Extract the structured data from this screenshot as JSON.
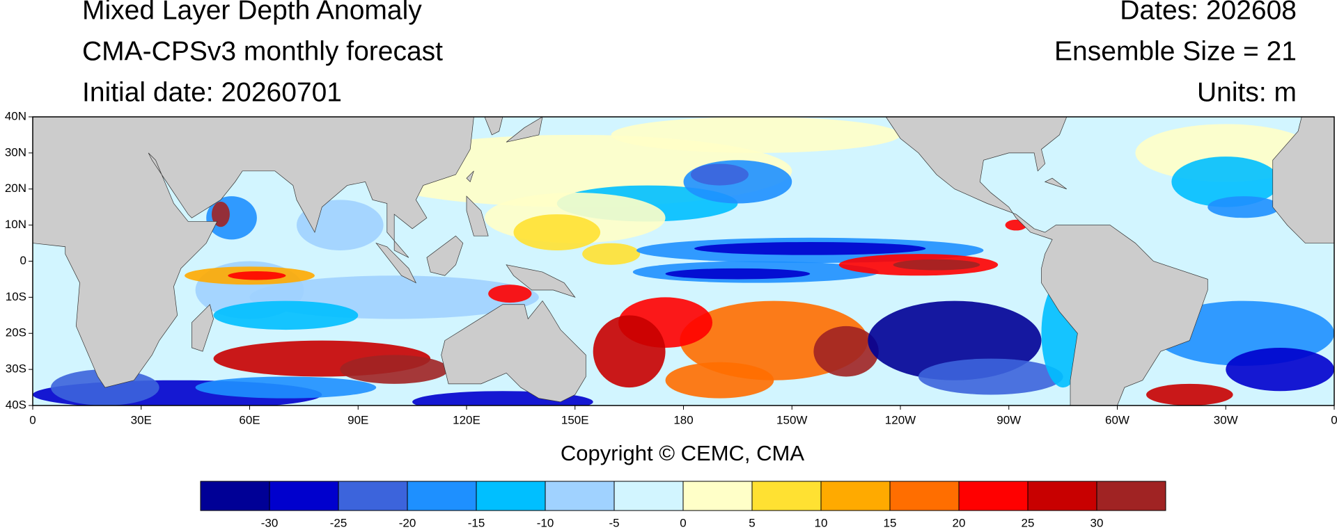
{
  "header": {
    "title": "Mixed Layer Depth Anomaly",
    "subtitle": "CMA-CPSv3 monthly forecast",
    "initial_date": "Initial date: 20260701",
    "dates": "Dates: 202608",
    "ensemble": "Ensemble Size = 21",
    "units": "Units: m"
  },
  "map": {
    "lat_ticks": [
      {
        "value": 40,
        "label": "40N"
      },
      {
        "value": 30,
        "label": "30N"
      },
      {
        "value": 20,
        "label": "20N"
      },
      {
        "value": 10,
        "label": "10N"
      },
      {
        "value": 0,
        "label": "0"
      },
      {
        "value": -10,
        "label": "10S"
      },
      {
        "value": -20,
        "label": "20S"
      },
      {
        "value": -30,
        "label": "30S"
      },
      {
        "value": -40,
        "label": "40S"
      }
    ],
    "lon_ticks": [
      {
        "value": 0,
        "label": "0"
      },
      {
        "value": 30,
        "label": "30E"
      },
      {
        "value": 60,
        "label": "60E"
      },
      {
        "value": 90,
        "label": "90E"
      },
      {
        "value": 120,
        "label": "120E"
      },
      {
        "value": 150,
        "label": "150E"
      },
      {
        "value": 180,
        "label": "180"
      },
      {
        "value": 210,
        "label": "150W"
      },
      {
        "value": 240,
        "label": "120W"
      },
      {
        "value": 270,
        "label": "90W"
      },
      {
        "value": 300,
        "label": "60W"
      },
      {
        "value": 330,
        "label": "30W"
      },
      {
        "value": 360,
        "label": "0"
      }
    ]
  },
  "copyright": "Copyright © CEMC, CMA",
  "colorbar": {
    "levels": [
      -30,
      -25,
      -20,
      -15,
      -10,
      -5,
      0,
      5,
      10,
      15,
      20,
      25,
      30
    ],
    "colors": [
      "#000096",
      "#0000cd",
      "#3c64dc",
      "#1e90ff",
      "#00bfff",
      "#a0d2ff",
      "#d2f5ff",
      "#ffffc8",
      "#ffe132",
      "#ffaa00",
      "#ff6e00",
      "#ff0000",
      "#c80000",
      "#a02323"
    ]
  }
}
